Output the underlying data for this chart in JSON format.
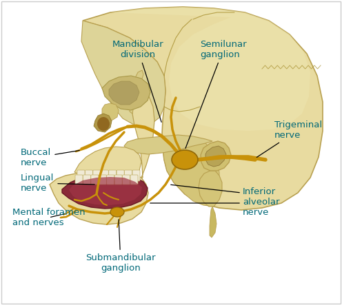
{
  "bg_color": "#ffffff",
  "skull_color": "#e8dba0",
  "skull_mid": "#d4c578",
  "skull_dark": "#b8a050",
  "skull_shadow": "#c8b560",
  "nerve_color": "#c8920a",
  "nerve_dark": "#906808",
  "tongue_color": "#8a2a38",
  "tongue_mid": "#a03545",
  "label_color": "#006878",
  "line_color": "#000000",
  "labels": {
    "mandibular": "Mandibular\ndivision",
    "semilunar": "Semilunar\nganglion",
    "trigeminal": "Trigeminal\nnerve",
    "buccal": "Buccal\nnerve",
    "lingual": "Lingual\nnerve",
    "mental": "Mental foramen\nand nerves",
    "submandibular": "Submandibular\nganglion",
    "inferior": "Inferior\nalveolar\nnerve"
  }
}
